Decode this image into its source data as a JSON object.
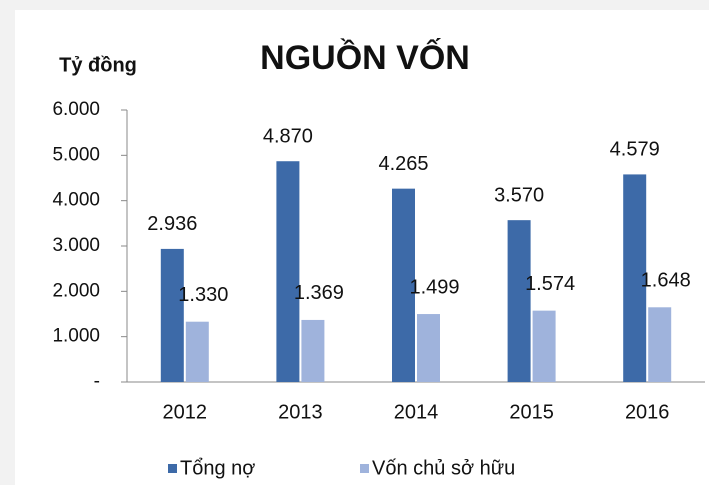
{
  "chart_data": {
    "type": "bar",
    "title": "NGUỒN VỐN",
    "y_label": "Tỷ đồng",
    "categories": [
      "2012",
      "2013",
      "2014",
      "2015",
      "2016"
    ],
    "series": [
      {
        "name": "Tổng nợ",
        "color": "#3d6aa8",
        "values": [
          2936,
          4870,
          4265,
          3570,
          4579
        ],
        "value_labels": [
          "2.936",
          "4.870",
          "4.265",
          "3.570",
          "4.579"
        ]
      },
      {
        "name": "Vốn chủ sở hữu",
        "color": "#9fb3dc",
        "values": [
          1330,
          1369,
          1499,
          1574,
          1648
        ],
        "value_labels": [
          "1.330",
          "1.369",
          "1.499",
          "1.574",
          "1.648"
        ]
      }
    ],
    "ylim": [
      0,
      6000
    ],
    "yticks": [
      {
        "value": 0,
        "label": "-"
      },
      {
        "value": 1000,
        "label": "1.000"
      },
      {
        "value": 2000,
        "label": "2.000"
      },
      {
        "value": 3000,
        "label": "3.000"
      },
      {
        "value": 4000,
        "label": "4.000"
      },
      {
        "value": 5000,
        "label": "5.000"
      },
      {
        "value": 6000,
        "label": "6.000"
      }
    ],
    "legend": "bottom"
  }
}
